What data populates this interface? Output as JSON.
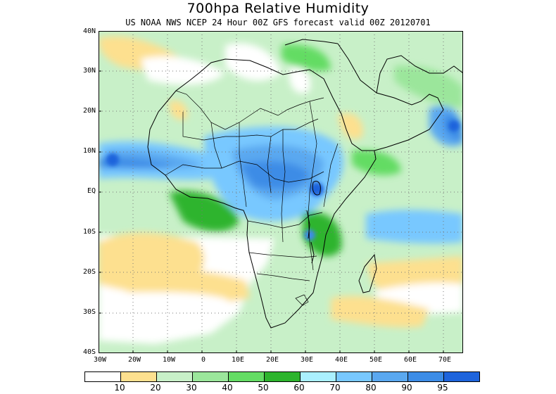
{
  "title": "700hpa Relative Humidity",
  "subtitle": "US NOAA NWS NCEP 24 Hour 00Z GFS forecast valid 00Z 20120701",
  "lat_labels": [
    "40N",
    "30N",
    "20N",
    "10N",
    "EQ",
    "10S",
    "20S",
    "30S",
    "40S"
  ],
  "lon_labels": [
    "30W",
    "20W",
    "10W",
    "0",
    "10E",
    "20E",
    "30E",
    "40E",
    "50E",
    "60E",
    "70E"
  ],
  "colorbar": {
    "colors": [
      "#ffffff",
      "#fde08f",
      "#c8f0c8",
      "#9be69b",
      "#64dc64",
      "#2db42d",
      "#aaf0ff",
      "#78c8ff",
      "#5aa8f0",
      "#3c8ce6",
      "#1e64dc"
    ],
    "labels": [
      "10",
      "20",
      "30",
      "40",
      "50",
      "60",
      "70",
      "80",
      "90",
      "95"
    ]
  }
}
